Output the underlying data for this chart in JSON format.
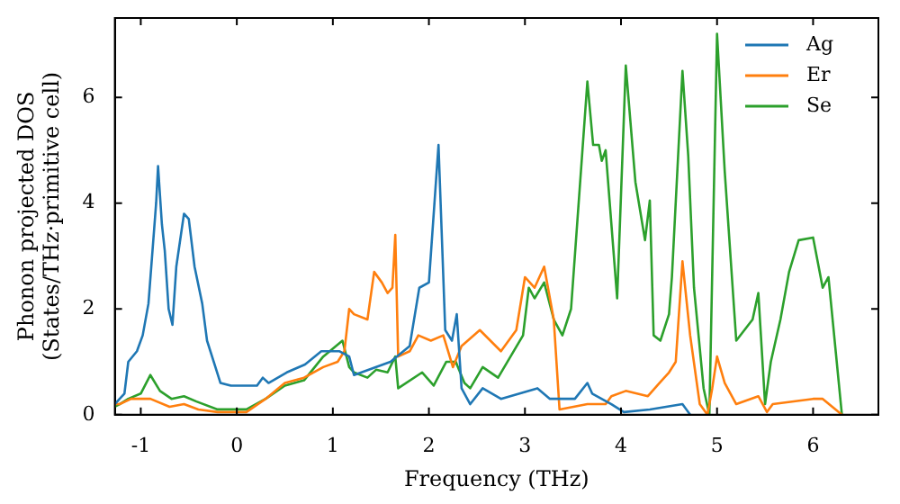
{
  "chart_data": {
    "type": "line",
    "xlabel": "Frequency (THz)",
    "ylabel": "Phonon projected DOS\n(States/THz·primitive cell)",
    "xlim": [
      -1.27,
      6.68
    ],
    "ylim": [
      0,
      7.5
    ],
    "xticks": [
      -1,
      0,
      1,
      2,
      3,
      4,
      5,
      6
    ],
    "yticks": [
      0,
      2,
      4,
      6
    ],
    "grid": false,
    "legend": "top right",
    "marker": "none",
    "line_style": "solid",
    "series": [
      {
        "name": "Ag",
        "color": "#1f77b4",
        "x": [
          -1.27,
          -1.22,
          -1.17,
          -1.13,
          -1.04,
          -0.98,
          -0.92,
          -0.84,
          -0.82,
          -0.78,
          -0.75,
          -0.71,
          -0.67,
          -0.63,
          -0.55,
          -0.5,
          -0.44,
          -0.36,
          -0.31,
          -0.17,
          -0.06,
          0.21,
          0.27,
          0.33,
          0.52,
          0.71,
          0.88,
          1.07,
          1.17,
          1.22,
          1.6,
          1.8,
          1.9,
          2.0,
          2.1,
          2.17,
          2.24,
          2.29,
          2.34,
          2.43,
          2.56,
          2.75,
          3.13,
          3.26,
          3.52,
          3.65,
          3.7,
          3.9,
          4.03,
          4.3,
          4.64,
          4.72
        ],
        "values": [
          0.2,
          0.3,
          0.4,
          1.0,
          1.2,
          1.5,
          2.1,
          4.0,
          4.7,
          3.6,
          3.1,
          2.0,
          1.7,
          2.8,
          3.8,
          3.7,
          2.8,
          2.1,
          1.4,
          0.6,
          0.55,
          0.55,
          0.7,
          0.6,
          0.8,
          0.95,
          1.2,
          1.2,
          1.1,
          0.75,
          1.0,
          1.3,
          2.4,
          2.5,
          5.1,
          1.6,
          1.4,
          1.9,
          0.5,
          0.2,
          0.5,
          0.3,
          0.5,
          0.3,
          0.3,
          0.6,
          0.4,
          0.2,
          0.05,
          0.1,
          0.2,
          0
        ]
      },
      {
        "name": "Er",
        "color": "#ff7f0e",
        "x": [
          -1.27,
          -1.22,
          -1.1,
          -0.9,
          -0.7,
          -0.55,
          -0.4,
          -0.2,
          0.1,
          0.3,
          0.5,
          0.7,
          0.9,
          1.05,
          1.12,
          1.17,
          1.22,
          1.36,
          1.43,
          1.51,
          1.57,
          1.62,
          1.65,
          1.68,
          1.8,
          1.89,
          2.02,
          2.15,
          2.25,
          2.34,
          2.53,
          2.75,
          2.91,
          3.0,
          3.1,
          3.2,
          3.3,
          3.36,
          3.65,
          3.84,
          3.9,
          4.05,
          4.28,
          4.4,
          4.5,
          4.57,
          4.64,
          4.72,
          4.82,
          4.9,
          4.95,
          5.0,
          5.08,
          5.2,
          5.43,
          5.52,
          5.58,
          6.0,
          6.1,
          6.3
        ],
        "values": [
          0.2,
          0.2,
          0.3,
          0.3,
          0.15,
          0.2,
          0.1,
          0.05,
          0.05,
          0.3,
          0.6,
          0.7,
          0.9,
          1.0,
          1.2,
          2.0,
          1.9,
          1.8,
          2.7,
          2.5,
          2.3,
          2.4,
          3.4,
          1.1,
          1.2,
          1.5,
          1.4,
          1.5,
          0.9,
          1.3,
          1.6,
          1.2,
          1.6,
          2.6,
          2.4,
          2.8,
          1.8,
          0.1,
          0.2,
          0.2,
          0.35,
          0.45,
          0.35,
          0.6,
          0.8,
          1.0,
          2.9,
          1.5,
          0.2,
          0,
          0.5,
          1.1,
          0.6,
          0.2,
          0.35,
          0.05,
          0.2,
          0.3,
          0.3,
          0
        ]
      },
      {
        "name": "Se",
        "color": "#2ca02c",
        "x": [
          -1.27,
          -1.22,
          -1.13,
          -1.0,
          -0.9,
          -0.8,
          -0.68,
          -0.55,
          -0.42,
          -0.2,
          0.1,
          0.3,
          0.5,
          0.7,
          0.9,
          1.1,
          1.17,
          1.22,
          1.36,
          1.45,
          1.57,
          1.65,
          1.68,
          1.93,
          2.05,
          2.18,
          2.28,
          2.37,
          2.43,
          2.56,
          2.72,
          2.85,
          2.98,
          3.04,
          3.1,
          3.2,
          3.3,
          3.39,
          3.48,
          3.65,
          3.71,
          3.77,
          3.8,
          3.84,
          3.96,
          4.05,
          4.15,
          4.25,
          4.3,
          4.34,
          4.41,
          4.5,
          4.53,
          4.64,
          4.7,
          4.76,
          4.86,
          4.92,
          5.0,
          5.08,
          5.2,
          5.37,
          5.43,
          5.5,
          5.56,
          5.66,
          5.75,
          5.85,
          6.0,
          6.1,
          6.16,
          6.3
        ],
        "values": [
          0.15,
          0.2,
          0.3,
          0.4,
          0.75,
          0.45,
          0.3,
          0.35,
          0.25,
          0.1,
          0.1,
          0.3,
          0.55,
          0.65,
          1.1,
          1.4,
          0.9,
          0.8,
          0.7,
          0.85,
          0.8,
          1.1,
          0.5,
          0.8,
          0.55,
          1.0,
          1.0,
          0.6,
          0.5,
          0.9,
          0.7,
          1.1,
          1.5,
          2.4,
          2.2,
          2.5,
          1.8,
          1.5,
          2.0,
          6.3,
          5.1,
          5.1,
          4.8,
          5.0,
          2.2,
          6.6,
          4.4,
          3.3,
          4.05,
          1.5,
          1.4,
          1.9,
          2.6,
          6.5,
          4.9,
          2.4,
          0.5,
          0,
          7.2,
          4.6,
          1.4,
          1.8,
          2.3,
          0.2,
          1.0,
          1.8,
          2.7,
          3.3,
          3.35,
          2.4,
          2.6,
          0
        ]
      }
    ]
  }
}
